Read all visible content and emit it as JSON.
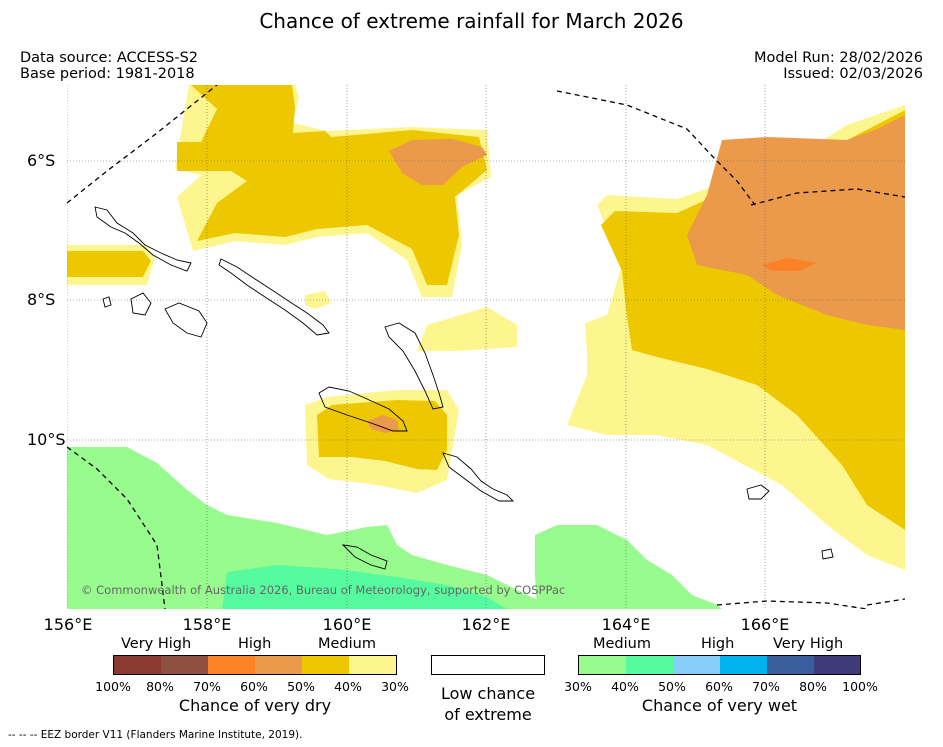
{
  "title": "Chance of extreme rainfall for March 2026",
  "meta": {
    "data_source": "Data source: ACCESS-S2",
    "base_period": "Base period: 1981-2018",
    "model_run": "Model Run: 28/02/2026",
    "issued": "Issued: 02/03/2026"
  },
  "axes": {
    "lon": [
      "156°E",
      "158°E",
      "160°E",
      "162°E",
      "164°E",
      "166°E"
    ],
    "lat": [
      "6°S",
      "8°S",
      "10°S"
    ]
  },
  "copyright": "© Commonwealth of Australia 2026, Bureau of Meteorology, supported by COSPPac",
  "legend": {
    "dry": {
      "labels": [
        "Very High",
        "High",
        "Medium"
      ],
      "percents": [
        "100%",
        "80%",
        "70%",
        "60%",
        "50%",
        "40%",
        "30%"
      ],
      "colors": [
        "#8b3a32",
        "#8e5040",
        "#fc8127",
        "#ea9a4a",
        "#edc800",
        "#fdf68e"
      ],
      "caption": "Chance of very dry"
    },
    "neutral": {
      "caption_line1": "Low chance",
      "caption_line2": "of extreme"
    },
    "wet": {
      "labels": [
        "Medium",
        "High",
        "Very High"
      ],
      "percents": [
        "30%",
        "40%",
        "50%",
        "60%",
        "70%",
        "80%",
        "100%"
      ],
      "colors": [
        "#98fb8e",
        "#57fb9f",
        "#86cdf9",
        "#00b2ee",
        "#3a5e9d",
        "#3f3b7a"
      ],
      "caption": "Chance of very wet"
    }
  },
  "footnote": "--  --  -- EEZ border V11 (Flanders Marine Institute, 2019)."
}
